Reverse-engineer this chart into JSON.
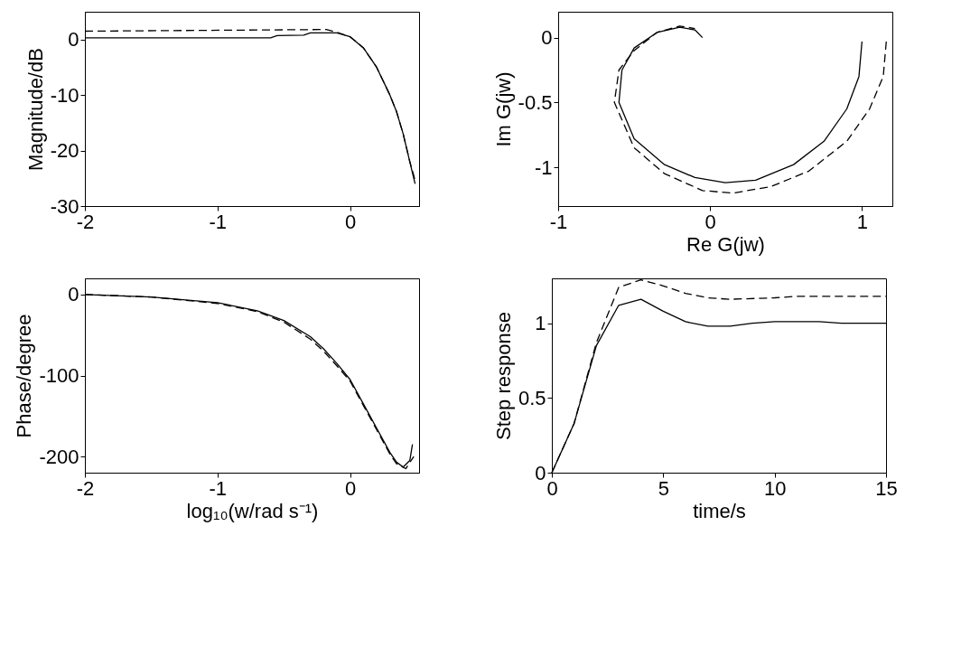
{
  "chart_data": [
    {
      "type": "line",
      "ylabel": "Magnitude/dB",
      "xlim": [
        -2,
        0.52
      ],
      "xticks": [
        -2,
        -1,
        0
      ],
      "ylim": [
        -30,
        5
      ],
      "yticks": [
        -30,
        -20,
        -10,
        0
      ],
      "grid": false,
      "marker": "none",
      "series": [
        {
          "color": "#000000",
          "line_style": "solid",
          "x": [
            -2,
            -0.6,
            -0.55,
            -0.35,
            -0.3,
            -0.1,
            0,
            0.1,
            0.2,
            0.3,
            0.35,
            0.4,
            0.45,
            0.48,
            0.49
          ],
          "values": [
            0.3,
            0.3,
            0.7,
            0.8,
            1.2,
            1.2,
            0.5,
            -1.5,
            -5,
            -10,
            -13,
            -17,
            -22,
            -25,
            -26
          ]
        },
        {
          "color": "#000000",
          "line_style": "dashed",
          "x": [
            -2,
            -0.18,
            -0.1,
            0,
            0.1,
            0.2,
            0.3,
            0.35,
            0.4,
            0.45,
            0.48,
            0.49
          ],
          "values": [
            1.5,
            1.8,
            1.3,
            0.5,
            -1.5,
            -5,
            -10,
            -13,
            -17,
            -22,
            -24.5,
            -25.5
          ]
        }
      ]
    },
    {
      "type": "line",
      "xlabel": "Re G(jw)",
      "ylabel": "Im G(jw)",
      "xlim": [
        -1,
        1.2
      ],
      "xticks": [
        -1,
        0,
        1
      ],
      "ylim": [
        -1.3,
        0.2
      ],
      "yticks": [
        -1,
        -0.5,
        0
      ],
      "grid": false,
      "marker": "none",
      "series": [
        {
          "color": "#000000",
          "line_style": "solid",
          "x": [
            1.0,
            0.98,
            0.9,
            0.75,
            0.55,
            0.3,
            0.1,
            -0.1,
            -0.3,
            -0.5,
            -0.6,
            -0.58,
            -0.5,
            -0.35,
            -0.2,
            -0.1,
            -0.05
          ],
          "values": [
            -0.03,
            -0.3,
            -0.55,
            -0.8,
            -0.98,
            -1.1,
            -1.12,
            -1.08,
            -0.98,
            -0.78,
            -0.5,
            -0.25,
            -0.08,
            0.04,
            0.08,
            0.06,
            0.0
          ]
        },
        {
          "color": "#000000",
          "line_style": "dashed",
          "x": [
            1.16,
            1.14,
            1.05,
            0.9,
            0.65,
            0.4,
            0.15,
            -0.05,
            -0.3,
            -0.5,
            -0.63,
            -0.6,
            -0.5,
            -0.35,
            -0.2,
            -0.1
          ],
          "values": [
            -0.03,
            -0.3,
            -0.55,
            -0.8,
            -1.03,
            -1.15,
            -1.2,
            -1.18,
            -1.05,
            -0.85,
            -0.5,
            -0.25,
            -0.1,
            0.04,
            0.09,
            0.07
          ]
        }
      ]
    },
    {
      "type": "line",
      "xlabel": "log₁₀(w/rad s⁻¹)",
      "ylabel": "Phase/degree",
      "xlim": [
        -2,
        0.52
      ],
      "xticks": [
        -2,
        -1,
        0
      ],
      "ylim": [
        -220,
        20
      ],
      "yticks": [
        -200,
        -100,
        0
      ],
      "grid": false,
      "marker": "none",
      "series": [
        {
          "color": "#000000",
          "line_style": "solid",
          "x": [
            -2,
            -1.5,
            -1,
            -0.7,
            -0.5,
            -0.3,
            -0.2,
            -0.1,
            0,
            0.1,
            0.2,
            0.3,
            0.35,
            0.4,
            0.45,
            0.47
          ],
          "values": [
            0,
            -3,
            -10,
            -20,
            -32,
            -52,
            -67,
            -85,
            -105,
            -135,
            -165,
            -195,
            -207,
            -213,
            -205,
            -185
          ]
        },
        {
          "color": "#000000",
          "line_style": "dashed",
          "x": [
            -2,
            -1.5,
            -1,
            -0.7,
            -0.5,
            -0.3,
            -0.2,
            -0.1,
            0,
            0.1,
            0.2,
            0.3,
            0.35,
            0.42,
            0.48
          ],
          "values": [
            0,
            -3,
            -11,
            -21,
            -34,
            -55,
            -70,
            -88,
            -107,
            -137,
            -167,
            -197,
            -209,
            -215,
            -200
          ]
        }
      ]
    },
    {
      "type": "line",
      "xlabel": "time/s",
      "ylabel": "Step response",
      "xlim": [
        0,
        15
      ],
      "xticks": [
        0,
        5,
        10,
        15
      ],
      "ylim": [
        0,
        1.3
      ],
      "yticks": [
        0,
        0.5,
        1
      ],
      "grid": false,
      "marker": "none",
      "series": [
        {
          "color": "#000000",
          "line_style": "solid",
          "x": [
            0,
            1,
            2,
            3,
            4,
            5,
            6,
            7,
            8,
            9,
            10,
            12,
            13,
            15
          ],
          "values": [
            0,
            0.33,
            0.85,
            1.12,
            1.16,
            1.08,
            1.01,
            0.98,
            0.98,
            1.0,
            1.01,
            1.01,
            1.0,
            1.0
          ]
        },
        {
          "color": "#000000",
          "line_style": "dashed",
          "x": [
            0,
            1,
            2,
            3,
            4,
            5,
            6,
            7,
            8,
            10,
            11,
            15
          ],
          "values": [
            0,
            0.33,
            0.87,
            1.24,
            1.29,
            1.25,
            1.2,
            1.17,
            1.16,
            1.17,
            1.18,
            1.18
          ]
        }
      ]
    }
  ]
}
